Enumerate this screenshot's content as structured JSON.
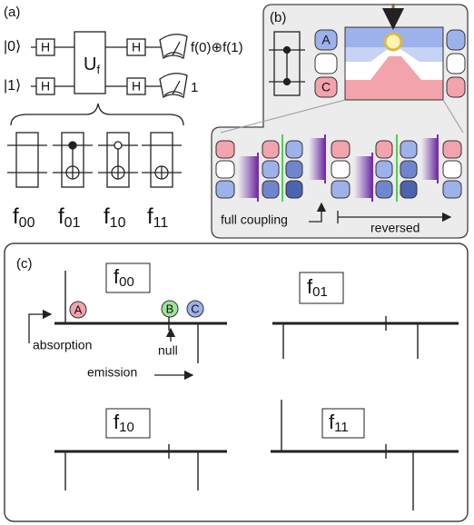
{
  "panel_a": {
    "label": "(a)",
    "ket0": "|0⟩",
    "ket1": "|1⟩",
    "hadamard": "H",
    "oracle": {
      "base": "U",
      "sub": "f"
    },
    "output_top": "f(0)⊕f(1)",
    "output_bottom": "1",
    "functions": [
      {
        "base": "f",
        "sub": "00"
      },
      {
        "base": "f",
        "sub": "01"
      },
      {
        "base": "f",
        "sub": "10"
      },
      {
        "base": "f",
        "sub": "11"
      }
    ]
  },
  "panel_b": {
    "label": "(b)",
    "levels": [
      "A",
      "C"
    ],
    "full_coupling": "full coupling",
    "reversed": "reversed"
  },
  "panel_c": {
    "label": "(c)",
    "plots": [
      {
        "base": "f",
        "sub": "00"
      },
      {
        "base": "f",
        "sub": "01"
      },
      {
        "base": "f",
        "sub": "10"
      },
      {
        "base": "f",
        "sub": "11"
      }
    ],
    "peaks": [
      "A",
      "B",
      "C"
    ],
    "absorption": "absorption",
    "null": "null",
    "emission": "emission"
  }
}
